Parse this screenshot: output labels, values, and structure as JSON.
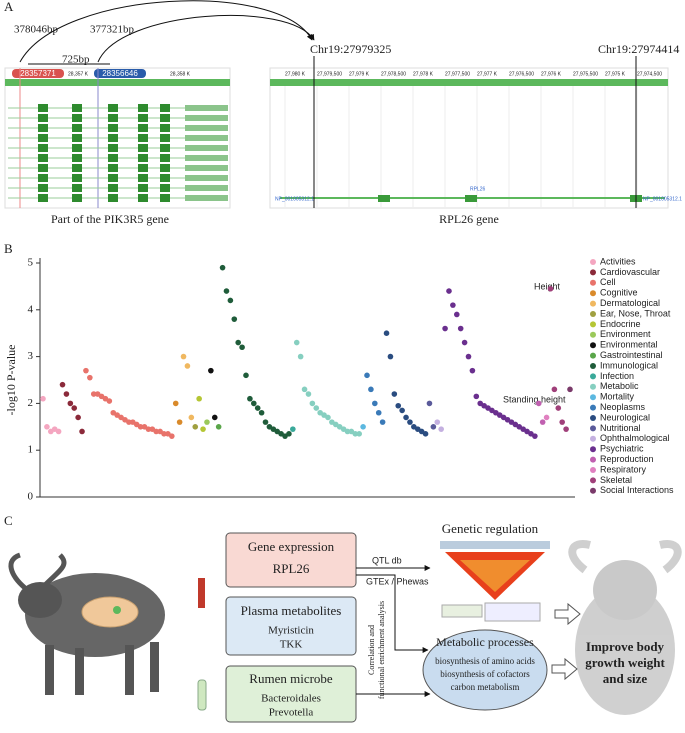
{
  "panel_a": {
    "label": "A",
    "distance_1": "378046bp",
    "distance_2": "377321bp",
    "distance_3": "725bp",
    "position_1": "28357371",
    "position_2": "28356646",
    "left_ticks": [
      "28,357 K",
      "28,358 K"
    ],
    "target_1": "Chr19:27979325",
    "target_2": "Chr19:27974414",
    "right_ticks": [
      "27,980 K",
      "27,979,500",
      "27,979 K",
      "27,978,500",
      "27,978 K",
      "27,977,500",
      "27,977 K",
      "27,976,500",
      "27,976 K",
      "27,975,500",
      "27,975 K",
      "27,974,500"
    ],
    "right_track_left": "NP_001005312.1",
    "right_track_gene": "RPL26",
    "right_track_right": "NP_001005312.1",
    "left_caption": "Part of the PIK3R5 gene",
    "right_caption": "RPL26 gene"
  },
  "chart_data": {
    "type": "scatter",
    "label": "B",
    "y_label": "-log10 P-value",
    "ylim": [
      0,
      5
    ],
    "yticks": [
      0,
      1,
      2,
      3,
      4,
      5
    ],
    "annotations": [
      "Height",
      "Standing height"
    ],
    "series": [
      {
        "name": "Activities",
        "color": "#f4a6c0",
        "values": [
          2.1,
          1.5,
          1.4,
          1.45,
          1.4
        ]
      },
      {
        "name": "Cardiovascular",
        "color": "#8b2a3a",
        "values": [
          2.4,
          2.2,
          2.0,
          1.9,
          1.7,
          1.4
        ]
      },
      {
        "name": "Cell",
        "color": "#e8736b",
        "values": [
          2.7,
          2.55,
          2.2,
          2.2,
          2.15,
          2.1,
          2.05,
          1.8,
          1.75,
          1.7,
          1.65,
          1.6,
          1.6,
          1.55,
          1.5,
          1.5,
          1.45,
          1.45,
          1.4,
          1.4,
          1.35,
          1.35,
          1.3
        ]
      },
      {
        "name": "Cognitive",
        "color": "#d98a2b",
        "values": [
          2.0,
          1.6
        ]
      },
      {
        "name": "Dermatological",
        "color": "#f0b860",
        "values": [
          3.0,
          2.8,
          1.7
        ]
      },
      {
        "name": "Ear, Nose, Throat",
        "color": "#a0a040",
        "values": [
          1.5
        ]
      },
      {
        "name": "Endocrine",
        "color": "#b5c634",
        "values": [
          2.1,
          1.45
        ]
      },
      {
        "name": "Environment",
        "color": "#9bc95a",
        "values": [
          1.6
        ]
      },
      {
        "name": "Environmental",
        "color": "#111111",
        "values": [
          2.7,
          1.7
        ]
      },
      {
        "name": "Gastrointestinal",
        "color": "#5aa64a",
        "values": [
          1.5
        ]
      },
      {
        "name": "Immunological",
        "color": "#1f5c3a",
        "values": [
          4.9,
          4.4,
          4.2,
          3.8,
          3.3,
          3.2,
          2.6,
          2.1,
          2.0,
          1.9,
          1.8,
          1.6,
          1.5,
          1.45,
          1.4,
          1.35,
          1.3,
          1.35
        ]
      },
      {
        "name": "Infection",
        "color": "#3aa99a",
        "values": [
          1.45
        ]
      },
      {
        "name": "Metabolic",
        "color": "#86cfc0",
        "values": [
          3.3,
          3.0,
          2.3,
          2.2,
          2.0,
          1.9,
          1.8,
          1.75,
          1.7,
          1.6,
          1.55,
          1.5,
          1.45,
          1.4,
          1.4,
          1.35,
          1.35
        ]
      },
      {
        "name": "Mortality",
        "color": "#5cb8e0",
        "values": [
          1.5
        ]
      },
      {
        "name": "Neoplasms",
        "color": "#3a7ab8",
        "values": [
          2.6,
          2.3,
          2.0,
          1.8,
          1.6
        ]
      },
      {
        "name": "Neurological",
        "color": "#2a4c80",
        "values": [
          3.5,
          3.0,
          2.2,
          1.95,
          1.85,
          1.7,
          1.6,
          1.5,
          1.45,
          1.4,
          1.35
        ]
      },
      {
        "name": "Nutritional",
        "color": "#5a5a9a",
        "values": [
          2.0,
          1.5
        ]
      },
      {
        "name": "Ophthalmological",
        "color": "#c4b0e0",
        "values": [
          1.6,
          1.45
        ]
      },
      {
        "name": "Psychiatric",
        "color": "#6a2f8e",
        "values": [
          3.6,
          4.4,
          4.1,
          3.9,
          3.6,
          3.3,
          3.0,
          2.7,
          2.15,
          2.0,
          1.95,
          1.9,
          1.85,
          1.8,
          1.75,
          1.7,
          1.65,
          1.6,
          1.55,
          1.5,
          1.45,
          1.4,
          1.35,
          1.3
        ]
      },
      {
        "name": "Reproduction",
        "color": "#c060b0",
        "values": [
          2.0,
          1.6
        ]
      },
      {
        "name": "Respiratory",
        "color": "#e080c0",
        "values": [
          1.7
        ]
      },
      {
        "name": "Skeletal",
        "color": "#a0407a",
        "values": [
          4.45,
          2.3,
          1.9,
          1.6,
          1.45
        ]
      },
      {
        "name": "Social Interactions",
        "color": "#7a3a6a",
        "values": [
          2.3
        ]
      }
    ]
  },
  "panel_c": {
    "label": "C",
    "gene_title": "Gene expression",
    "gene_name": "RPL26",
    "plasma_title": "Plasma metabolites",
    "plasma_items": [
      "Myristicin",
      "TKK"
    ],
    "rumen_title": "Rumen microbe",
    "rumen_items": [
      "Bacteroidales",
      "Prevotella"
    ],
    "qtl": "QTL db",
    "gtex": "GTEx / Phewas",
    "analysis": [
      "Correlation and",
      "functional enrichment analysis"
    ],
    "genetic_title": "Genetic regulation",
    "metabolic_title": "Metabolic processes",
    "metabolic_items": [
      "biosynthesis of amino acids",
      "biosynthesis of cofactors",
      "carbon metabolism"
    ],
    "outcome": [
      "Improve body",
      "growth weight",
      "and size"
    ]
  }
}
